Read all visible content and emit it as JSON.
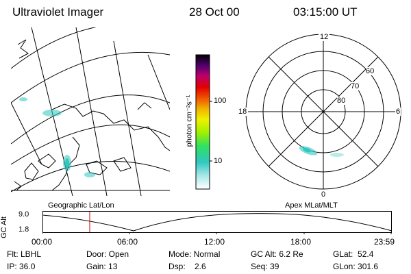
{
  "header": {
    "instrument": "Ultraviolet Imager",
    "date": "28 Oct 00",
    "time": "03:15:00 UT"
  },
  "colorbar": {
    "unit_label": "photon cm⁻²s⁻¹",
    "ticks": [
      "100",
      "10"
    ]
  },
  "geo_panel": {
    "caption": "Geographic Lat/Lon"
  },
  "polar_panel": {
    "caption": "Apex MLat/MLT",
    "mlt_labels": {
      "top": "12",
      "bottom": "0",
      "left": "18",
      "right": "6"
    },
    "lat_labels": [
      "60",
      "70",
      "80"
    ]
  },
  "altitude_plot": {
    "ylabel": "GC Alt",
    "yticks": [
      "9.0",
      "1.8"
    ],
    "xticks": [
      "00:00",
      "06:00",
      "12:00",
      "18:00",
      "23:59"
    ],
    "current_time_fraction": 0.1355
  },
  "info": {
    "flt": "Flt: LBHL",
    "ip": "IP: 36.0",
    "door": "Door: Open",
    "gain": "Gain: 13",
    "mode": "Mode: Normal",
    "dsp": "Dsp:    2.6",
    "gcalt": "GC Alt: 6.2 Re",
    "seq": "Seq: 39",
    "glat": "GLat:  52.4",
    "glon": "GLon: 301.6"
  },
  "colors": {
    "time_marker": "#cc0000",
    "aurora": "#30c8c0"
  }
}
